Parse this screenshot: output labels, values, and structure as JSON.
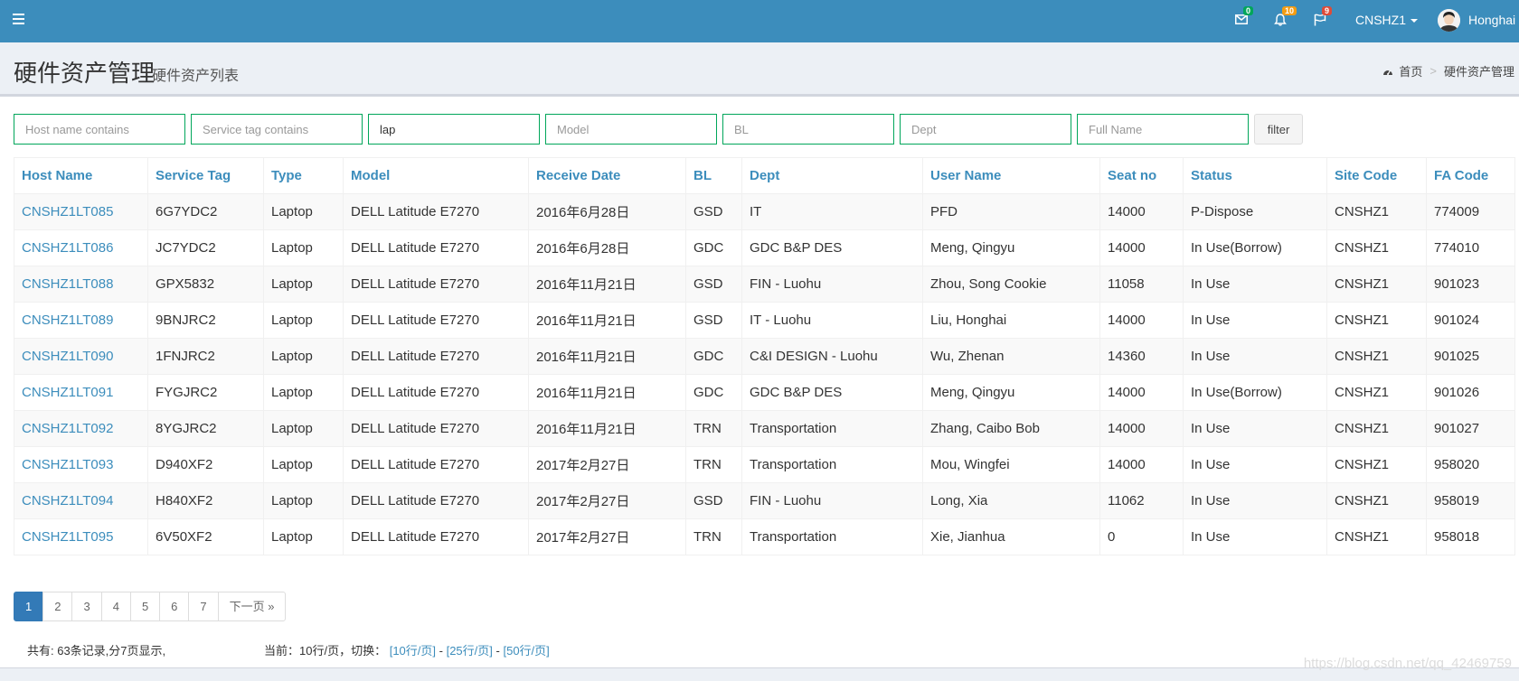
{
  "navbar": {
    "mail_count": "0",
    "mail_badge_color": "#00a65a",
    "notification_count": "10",
    "notification_badge_color": "#f39c12",
    "flag_count": "9",
    "flag_badge_color": "#dd4b39",
    "site": "CNSHZ1",
    "user": "Honghai"
  },
  "header": {
    "title": "硬件资产管理",
    "subtitle": "硬件资产列表",
    "breadcrumb_home": "首页",
    "breadcrumb_separator": ">",
    "breadcrumb_current": "硬件资产管理"
  },
  "filters": {
    "host_placeholder": "Host name contains",
    "service_tag_placeholder": "Service tag contains",
    "type_value": "lap",
    "model_placeholder": "Model",
    "bl_placeholder": "BL",
    "dept_placeholder": "Dept",
    "fullname_placeholder": "Full Name",
    "filter_label": "filter"
  },
  "table": {
    "columns": [
      "Host Name",
      "Service Tag",
      "Type",
      "Model",
      "Receive Date",
      "BL",
      "Dept",
      "User Name",
      "Seat no",
      "Status",
      "Site Code",
      "FA Code"
    ],
    "rows": [
      [
        "CNSHZ1LT085",
        "6G7YDC2",
        "Laptop",
        "DELL Latitude E7270",
        "2016年6月28日",
        "GSD",
        "IT",
        "PFD",
        "14000",
        "P-Dispose",
        "CNSHZ1",
        "774009"
      ],
      [
        "CNSHZ1LT086",
        "JC7YDC2",
        "Laptop",
        "DELL Latitude E7270",
        "2016年6月28日",
        "GDC",
        "GDC B&P DES",
        "Meng, Qingyu",
        "14000",
        "In Use(Borrow)",
        "CNSHZ1",
        "774010"
      ],
      [
        "CNSHZ1LT088",
        "GPX5832",
        "Laptop",
        "DELL Latitude E7270",
        "2016年11月21日",
        "GSD",
        "FIN - Luohu",
        "Zhou, Song Cookie",
        "11058",
        "In Use",
        "CNSHZ1",
        "901023"
      ],
      [
        "CNSHZ1LT089",
        "9BNJRC2",
        "Laptop",
        "DELL Latitude E7270",
        "2016年11月21日",
        "GSD",
        "IT - Luohu",
        "Liu, Honghai",
        "14000",
        "In Use",
        "CNSHZ1",
        "901024"
      ],
      [
        "CNSHZ1LT090",
        "1FNJRC2",
        "Laptop",
        "DELL Latitude E7270",
        "2016年11月21日",
        "GDC",
        "C&I DESIGN - Luohu",
        "Wu, Zhenan",
        "14360",
        "In Use",
        "CNSHZ1",
        "901025"
      ],
      [
        "CNSHZ1LT091",
        "FYGJRC2",
        "Laptop",
        "DELL Latitude E7270",
        "2016年11月21日",
        "GDC",
        "GDC B&P DES",
        "Meng, Qingyu",
        "14000",
        "In Use(Borrow)",
        "CNSHZ1",
        "901026"
      ],
      [
        "CNSHZ1LT092",
        "8YGJRC2",
        "Laptop",
        "DELL Latitude E7270",
        "2016年11月21日",
        "TRN",
        "Transportation",
        "Zhang, Caibo Bob",
        "14000",
        "In Use",
        "CNSHZ1",
        "901027"
      ],
      [
        "CNSHZ1LT093",
        "D940XF2",
        "Laptop",
        "DELL Latitude E7270",
        "2017年2月27日",
        "TRN",
        "Transportation",
        "Mou, Wingfei",
        "14000",
        "In Use",
        "CNSHZ1",
        "958020"
      ],
      [
        "CNSHZ1LT094",
        "H840XF2",
        "Laptop",
        "DELL Latitude E7270",
        "2017年2月27日",
        "GSD",
        "FIN - Luohu",
        "Long, Xia",
        "11062",
        "In Use",
        "CNSHZ1",
        "958019"
      ],
      [
        "CNSHZ1LT095",
        "6V50XF2",
        "Laptop",
        "DELL Latitude E7270",
        "2017年2月27日",
        "TRN",
        "Transportation",
        "Xie, Jianhua",
        "0",
        "In Use",
        "CNSHZ1",
        "958018"
      ]
    ]
  },
  "pagination": {
    "pages": [
      "1",
      "2",
      "3",
      "4",
      "5",
      "6",
      "7"
    ],
    "active": "1",
    "next_label": "下一页 »"
  },
  "footer": {
    "summary": "共有: 63条记录,分7页显示,",
    "current_prefix": "当前：10行/页，切换：",
    "opt_10": "[10行/页]",
    "opt_25": "[25行/页]",
    "opt_50": "[50行/页]",
    "dash": "-",
    "watermark": "https://blog.csdn.net/qq_42469759"
  }
}
